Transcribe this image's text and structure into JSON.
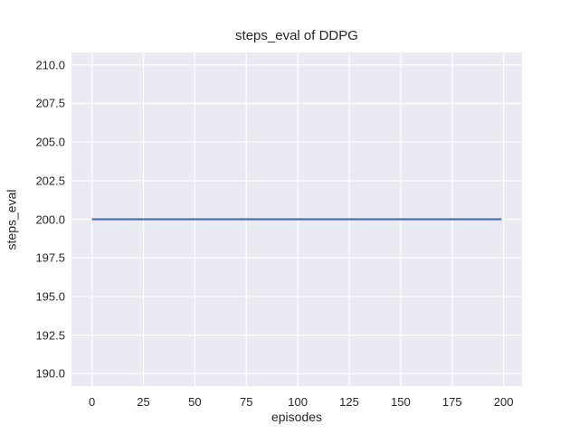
{
  "chart_data": {
    "type": "line",
    "title": "steps_eval of DDPG",
    "xlabel": "episodes",
    "ylabel": "steps_eval",
    "series": [
      {
        "name": "steps_eval",
        "x": [
          0,
          199
        ],
        "y": [
          200.0,
          200.0
        ],
        "color": "#4c72b0",
        "note": "constant value 200.0 for all episodes 0-199"
      }
    ],
    "xlim": [
      -9.95,
      208.95
    ],
    "ylim": [
      189.2,
      210.8
    ],
    "xtick_values": [
      0,
      25,
      50,
      75,
      100,
      125,
      150,
      175,
      200
    ],
    "xtick_labels": [
      "0",
      "25",
      "50",
      "75",
      "100",
      "125",
      "150",
      "175",
      "200"
    ],
    "ytick_values": [
      190.0,
      192.5,
      195.0,
      197.5,
      200.0,
      202.5,
      205.0,
      207.5,
      210.0
    ],
    "ytick_labels": [
      "190.0",
      "192.5",
      "195.0",
      "197.5",
      "200.0",
      "202.5",
      "205.0",
      "207.5",
      "210.0"
    ],
    "grid": true,
    "legend": false,
    "style": {
      "figure_bg": "#ffffff",
      "plot_bg": "#eaeaf2",
      "grid_color": "#ffffff",
      "text_color": "#262626",
      "line_color": "#4c72b0"
    }
  }
}
